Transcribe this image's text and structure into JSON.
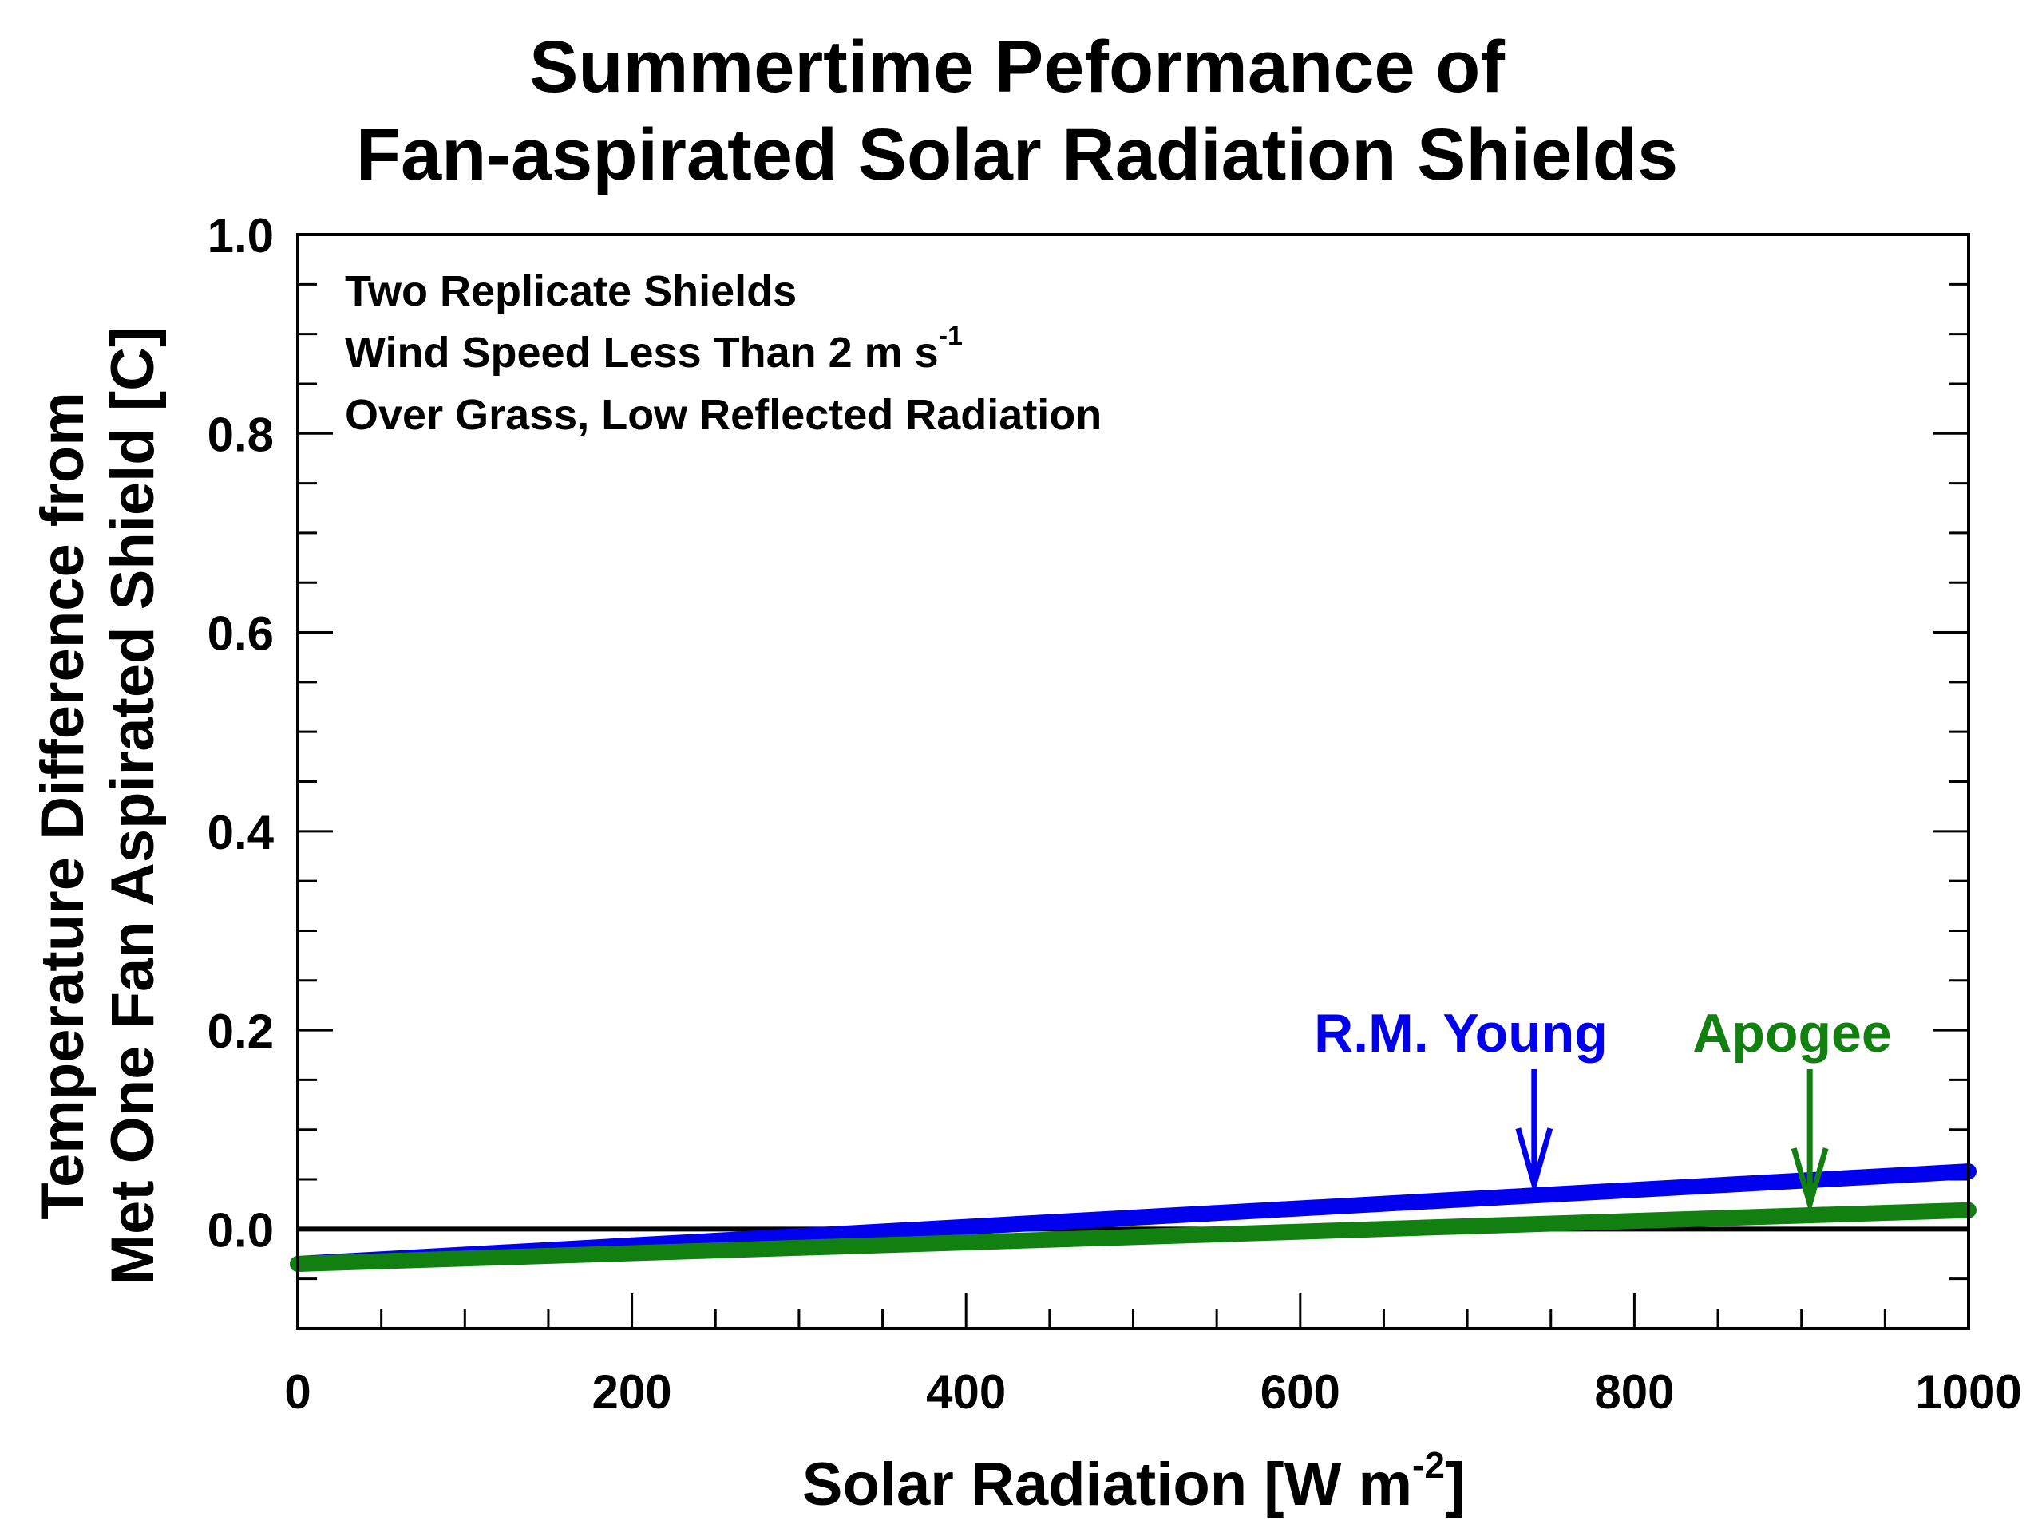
{
  "chart_data": {
    "type": "line",
    "title_line1": "Summertime Peformance of",
    "title_line2": "Fan-aspirated Solar Radiation Shields",
    "xlabel_main": "Solar Radiation [W m",
    "xlabel_sup": "-2",
    "xlabel_end": "]",
    "ylabel_line1": "Temperature Difference from",
    "ylabel_line2": "Met One Fan Aspirated Shield [C]",
    "xlim": [
      0,
      1000
    ],
    "ylim": [
      -0.1,
      1.0
    ],
    "x_ticks": [
      "0",
      "200",
      "400",
      "600",
      "800",
      "1000"
    ],
    "y_ticks": [
      "0.0",
      "0.2",
      "0.4",
      "0.6",
      "0.8",
      "1.0"
    ],
    "grid": false,
    "annotations": {
      "line1": "Two Replicate Shields",
      "line2_main": "Wind Speed Less Than 2 m s",
      "line2_sup": "-1",
      "line3": "Over Grass, Low Reflected Radiation"
    },
    "series": [
      {
        "name": "R.M. Young",
        "color": "#0000ee",
        "x": [
          0,
          1000
        ],
        "y": [
          -0.035,
          0.058
        ],
        "arrow_x": 740
      },
      {
        "name": "Apogee",
        "color": "#118011",
        "x": [
          0,
          1000
        ],
        "y": [
          -0.035,
          0.019
        ],
        "arrow_x": 905
      }
    ],
    "reference_line": {
      "y": 0.0,
      "color": "#000000"
    }
  }
}
